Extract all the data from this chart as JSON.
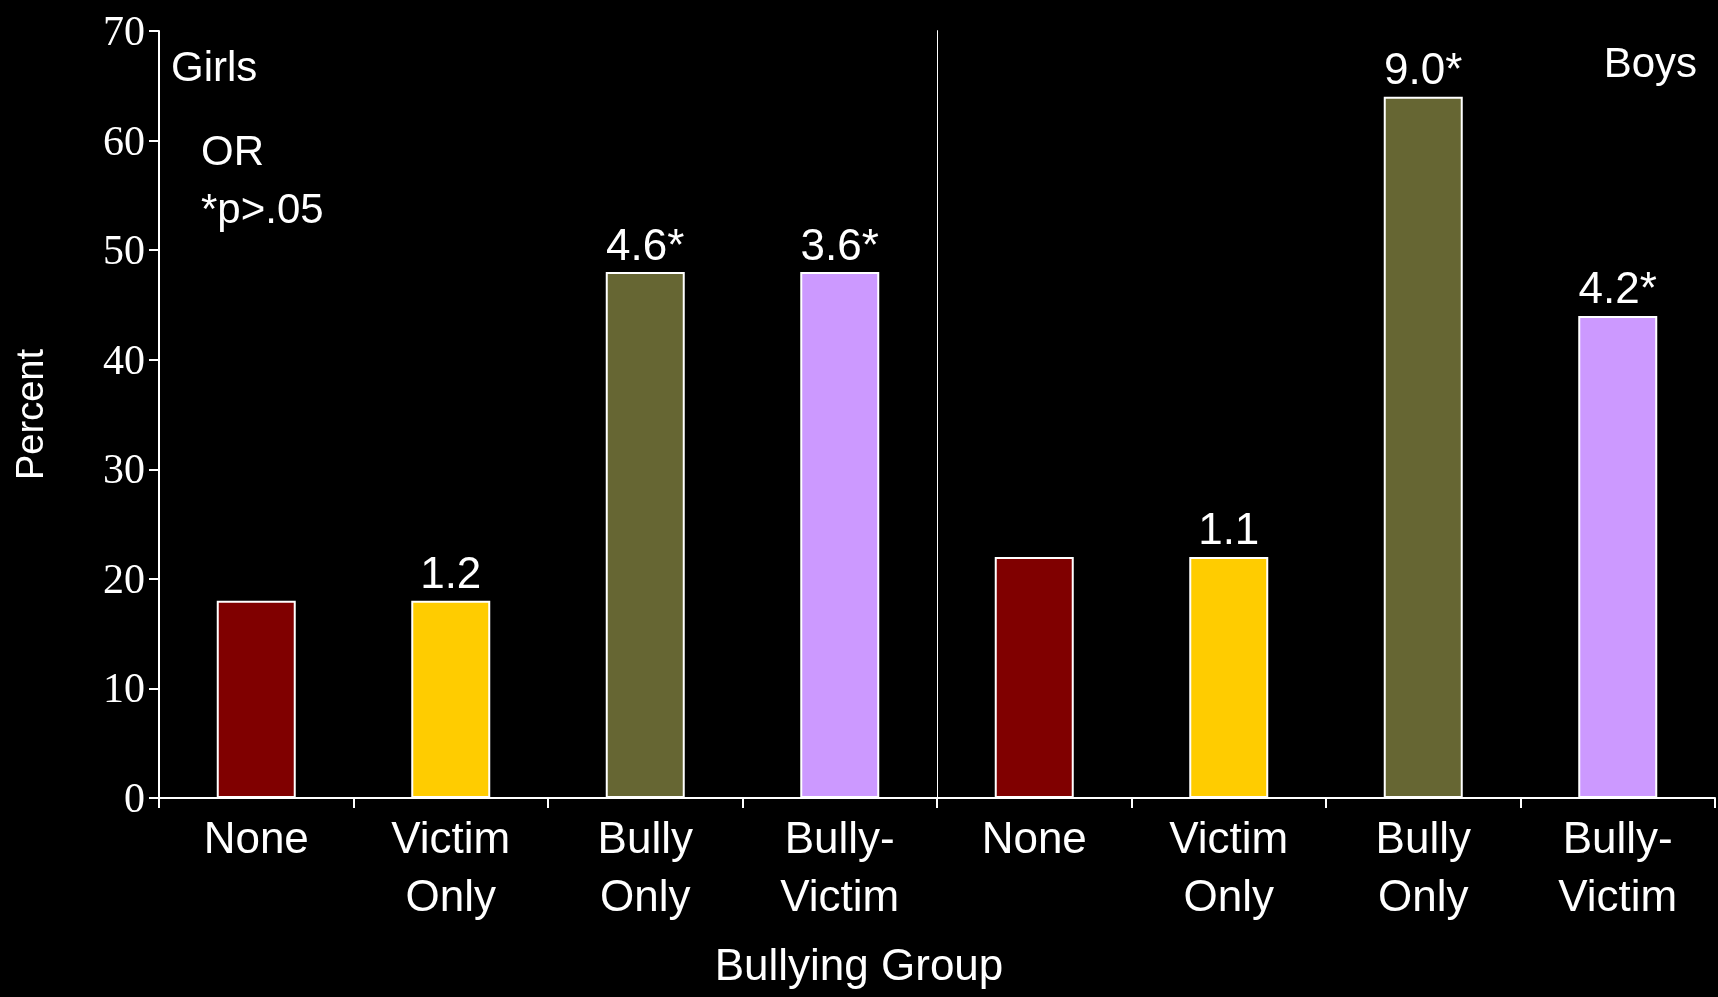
{
  "chart_data": [
    {
      "type": "bar",
      "ylabel": "Percent",
      "xlabel": "Bullying Group",
      "categories": [
        "None",
        "Victim\nOnly",
        "Bully\nOnly",
        "Bully-\nVictim"
      ],
      "values": [
        18,
        18,
        48,
        48
      ],
      "colors": [
        "#800000",
        "#ffcc00",
        "#666633",
        "#cc99ff"
      ],
      "ylim": [
        0,
        70
      ],
      "yticks": [
        0,
        10,
        20,
        30,
        40,
        50,
        60,
        70
      ],
      "annotations": [
        "Girls",
        "OR",
        "*p>.05",
        {
          "text": "1.2",
          "x": "Victim\nOnly",
          "y": 18
        },
        {
          "text": "4.6*",
          "x": "Bully\nOnly",
          "y": 48
        },
        {
          "text": "3.6*",
          "x": "Bully-\nVictim",
          "y": 48
        }
      ]
    },
    {
      "type": "bar",
      "categories": [
        "None",
        "Victim\nOnly",
        "Bully\nOnly",
        "Bully-\nVictim"
      ],
      "values": [
        22,
        22,
        64,
        44
      ],
      "colors": [
        "#800000",
        "#ffcc00",
        "#666633",
        "#cc99ff"
      ],
      "ylim": [
        0,
        70
      ],
      "yticks": [
        0,
        10,
        20,
        30,
        40,
        50,
        60,
        70
      ],
      "annotations": [
        "Boys",
        {
          "text": "1.1",
          "x": "Victim\nOnly",
          "y": 22
        },
        {
          "text": "9.0*",
          "x": "Bully\nOnly",
          "y": 64
        },
        {
          "text": "4.2*",
          "x": "Bully-\nVictim",
          "y": 44
        }
      ],
      "tick_labels": "x"
    }
  ]
}
